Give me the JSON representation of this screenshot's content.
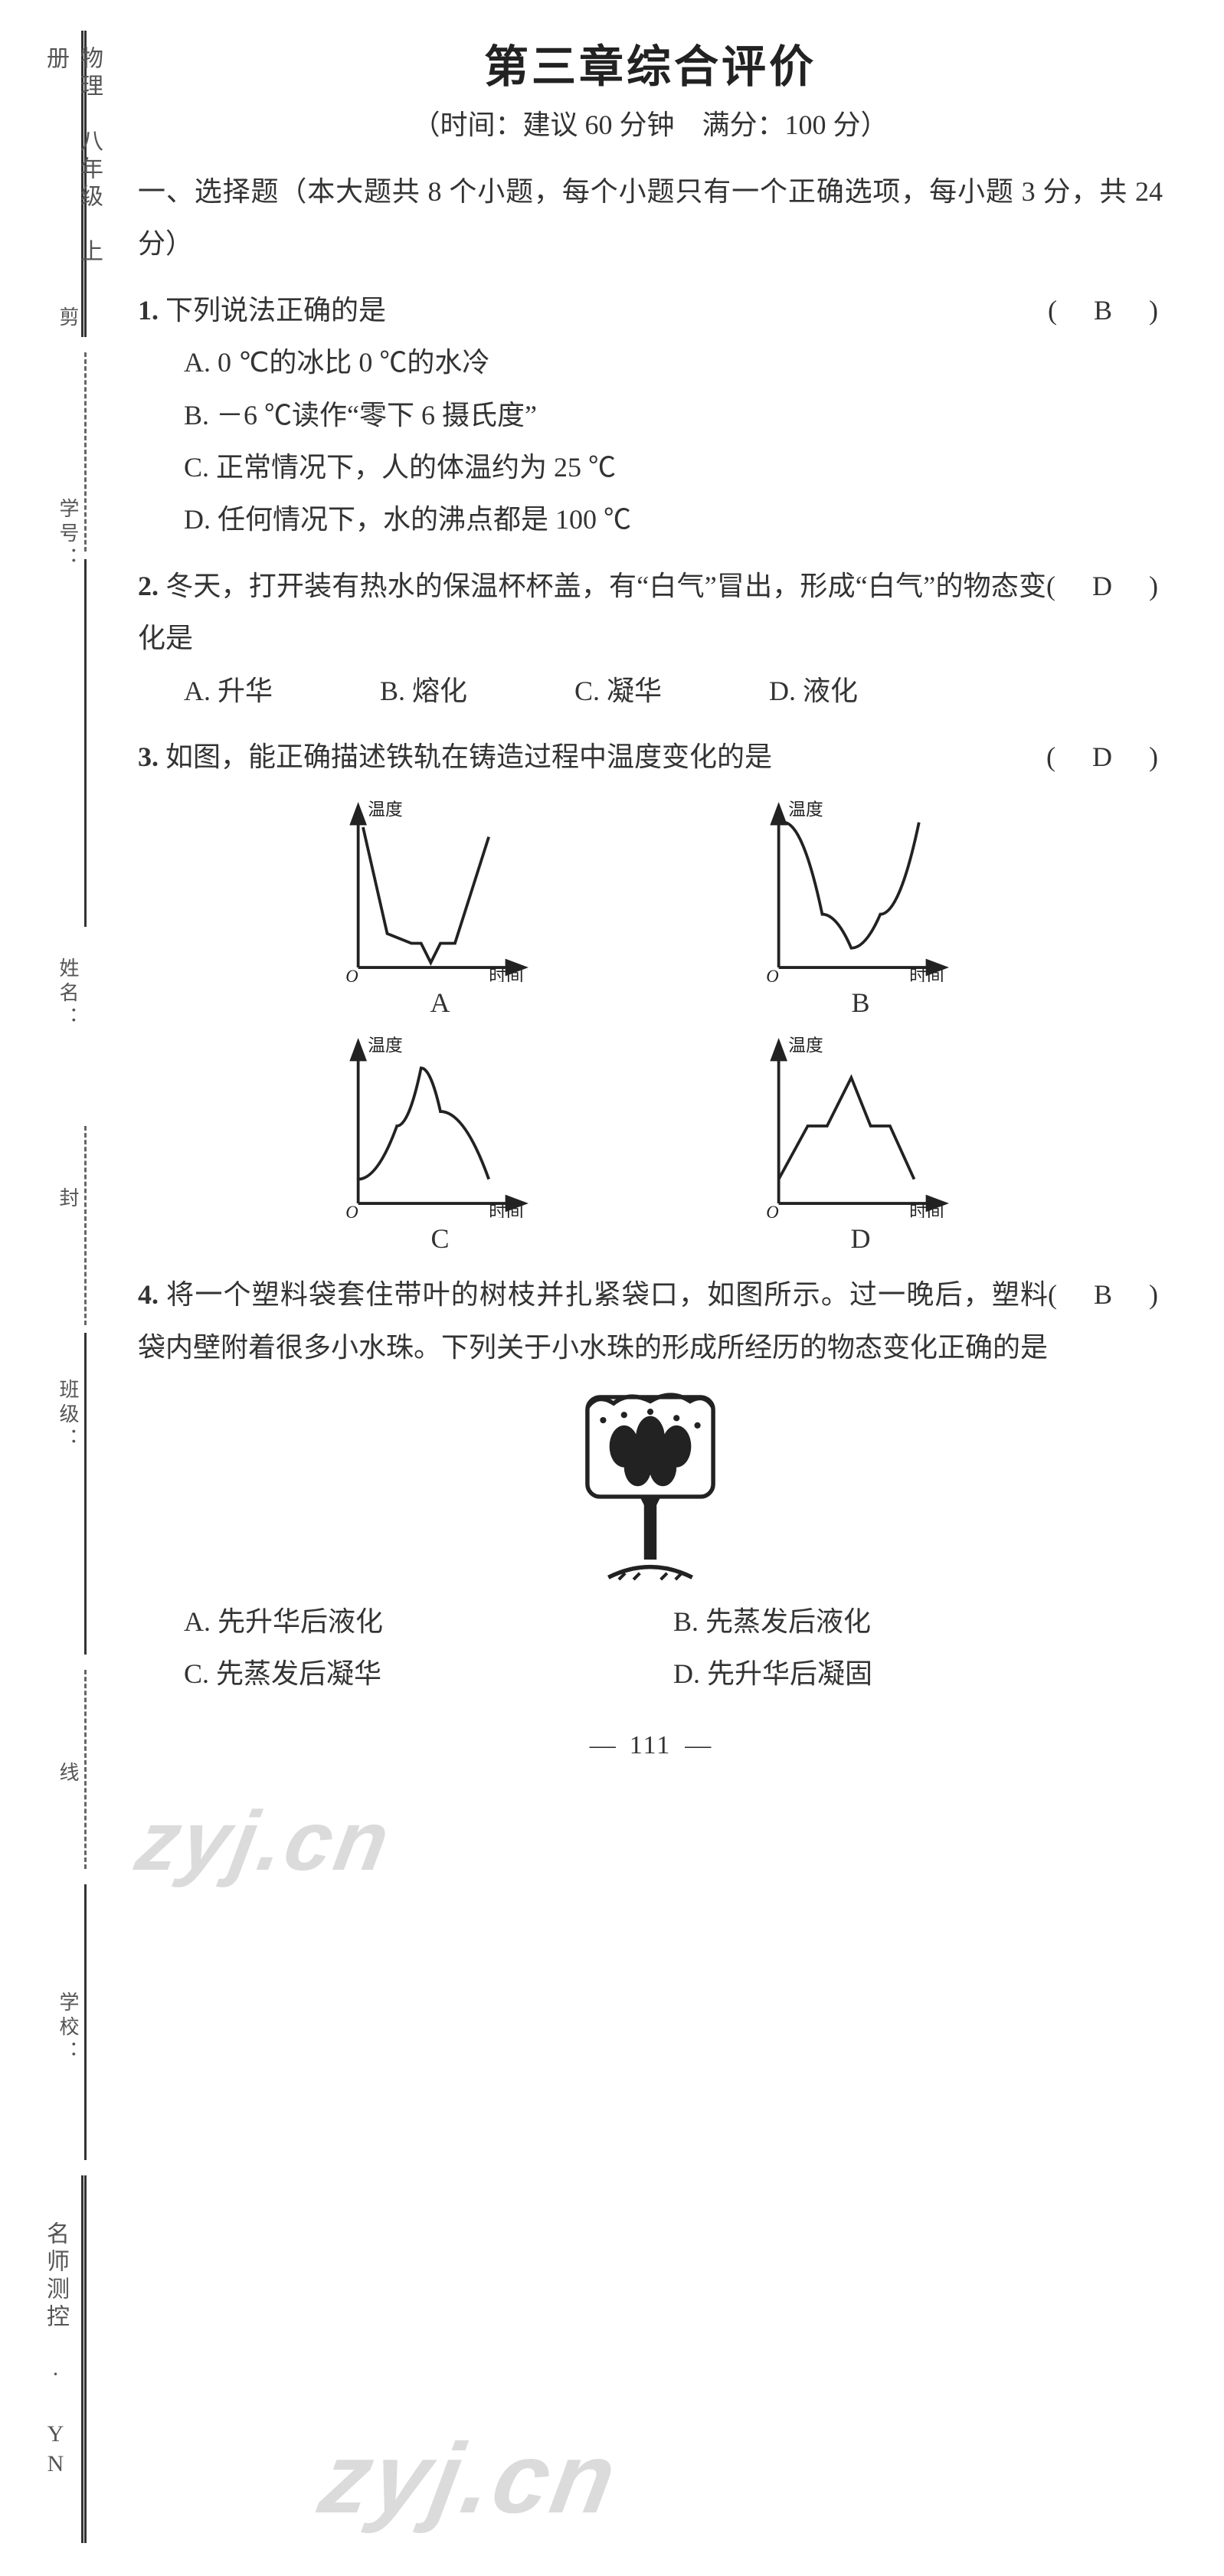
{
  "title": "第三章综合评价",
  "subtitle": "（时间：建议 60 分钟　满分：100 分）",
  "section1_header": "一、选择题（本大题共 8 个小题，每个小题只有一个正确选项，每小题 3 分，共 24 分）",
  "spine": {
    "top": "物理　八年级　上册",
    "cut": "剪",
    "xuehao": "学号：",
    "xingming": "姓名：",
    "feng": "封",
    "banji": "班级：",
    "xian": "线",
    "xuexiao": "学校：",
    "bottom": "名师测控 · YN"
  },
  "q1": {
    "num": "1.",
    "stem": "下列说法正确的是",
    "answer": "B",
    "opts": {
      "A": "A. 0 ℃的冰比 0 ℃的水冷",
      "B": "B. －6 ℃读作“零下 6 摄氏度”",
      "C": "C. 正常情况下，人的体温约为 25 ℃",
      "D": "D. 任何情况下，水的沸点都是 100 ℃"
    }
  },
  "q2": {
    "num": "2.",
    "stem": "冬天，打开装有热水的保温杯杯盖，有“白气”冒出，形成“白气”的物态变化是",
    "answer": "D",
    "opts": {
      "A": "A. 升华",
      "B": "B. 熔化",
      "C": "C. 凝华",
      "D": "D. 液化"
    }
  },
  "q3": {
    "num": "3.",
    "stem": "如图，能正确描述铁轨在铸造过程中温度变化的是",
    "answer": "D",
    "charts": {
      "ylabel": "温度",
      "xlabel": "时间",
      "origin": "O",
      "labels": {
        "A": "A",
        "B": "B",
        "C": "C",
        "D": "D"
      },
      "axis_color": "#222222",
      "curve_color": "#222222",
      "line_width": 3,
      "A": {
        "type": "line",
        "points": [
          [
            20,
            30
          ],
          [
            45,
            140
          ],
          [
            70,
            150
          ],
          [
            80,
            150
          ],
          [
            90,
            170
          ],
          [
            100,
            150
          ],
          [
            115,
            150
          ],
          [
            150,
            40
          ]
        ]
      },
      "B": {
        "type": "line",
        "points": [
          [
            20,
            25
          ],
          [
            60,
            120
          ],
          [
            90,
            155
          ],
          [
            120,
            120
          ],
          [
            160,
            25
          ]
        ]
      },
      "C": {
        "type": "line",
        "points": [
          [
            15,
            150
          ],
          [
            55,
            95
          ],
          [
            80,
            35
          ],
          [
            100,
            80
          ],
          [
            150,
            150
          ]
        ]
      },
      "D": {
        "type": "line",
        "points": [
          [
            15,
            150
          ],
          [
            45,
            95
          ],
          [
            65,
            95
          ],
          [
            90,
            45
          ],
          [
            110,
            95
          ],
          [
            130,
            95
          ],
          [
            155,
            150
          ]
        ]
      }
    }
  },
  "q4": {
    "num": "4.",
    "stem": "将一个塑料袋套住带叶的树枝并扎紧袋口，如图所示。过一晚后，塑料袋内壁附着很多小水珠。下列关于小水珠的形成所经历的物态变化正确的是",
    "answer": "B",
    "opts": {
      "A": "A. 先升华后液化",
      "B": "B. 先蒸发后液化",
      "C": "C. 先蒸发后凝华",
      "D": "D. 先升华后凝固"
    },
    "tree": {
      "crown_color": "#222222",
      "trunk_color": "#222222",
      "bag_color": "#222222"
    }
  },
  "watermark": "zyj.cn",
  "page_number": "111",
  "colors": {
    "text": "#333333",
    "bg": "#ffffff",
    "spine_rule": "#333333"
  }
}
